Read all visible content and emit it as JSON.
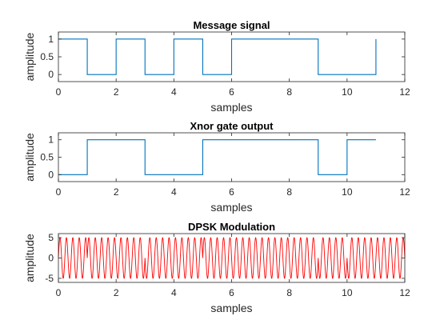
{
  "chart_data": [
    {
      "type": "line",
      "title": "Message signal",
      "xlabel": "samples",
      "ylabel": "amplitude",
      "xlim": [
        0,
        12
      ],
      "ylim": [
        -0.2,
        1.2
      ],
      "xticks": [
        0,
        2,
        4,
        6,
        8,
        10,
        12
      ],
      "yticks": [
        0,
        0.5,
        1
      ],
      "xtick_labels": [
        "0",
        "2",
        "4",
        "6",
        "8",
        "10",
        "12"
      ],
      "ytick_labels": [
        "0",
        "0.5",
        "1"
      ],
      "grid": false,
      "color": "#0072BD",
      "series": [
        {
          "step": "post",
          "x": [
            0,
            1,
            2,
            3,
            4,
            5,
            6,
            7,
            8,
            9,
            10,
            11
          ],
          "y": [
            1,
            0,
            1,
            0,
            1,
            0,
            1,
            1,
            1,
            0,
            0,
            1
          ]
        }
      ]
    },
    {
      "type": "line",
      "title": "Xnor gate output",
      "xlabel": "samples",
      "ylabel": "amplitude",
      "xlim": [
        0,
        12
      ],
      "ylim": [
        -0.2,
        1.2
      ],
      "xticks": [
        0,
        2,
        4,
        6,
        8,
        10,
        12
      ],
      "yticks": [
        0,
        0.5,
        1
      ],
      "xtick_labels": [
        "0",
        "2",
        "4",
        "6",
        "8",
        "10",
        "12"
      ],
      "ytick_labels": [
        "0",
        "0.5",
        "1"
      ],
      "grid": false,
      "color": "#0072BD",
      "series": [
        {
          "step": "post",
          "x": [
            0,
            1,
            2,
            3,
            4,
            5,
            6,
            7,
            8,
            9,
            10,
            11
          ],
          "y": [
            0,
            1,
            1,
            0,
            0,
            1,
            1,
            1,
            1,
            0,
            1,
            1
          ]
        }
      ]
    },
    {
      "type": "line",
      "title": "DPSK Modulation",
      "xlabel": "samples",
      "ylabel": "amplitude",
      "xlim": [
        0,
        12
      ],
      "ylim": [
        -6,
        6
      ],
      "xticks": [
        0,
        2,
        4,
        6,
        8,
        10,
        12
      ],
      "yticks": [
        -5,
        0,
        5
      ],
      "xtick_labels": [
        "0",
        "2",
        "4",
        "6",
        "8",
        "10",
        "12"
      ],
      "ytick_labels": [
        "-5",
        "0",
        "5"
      ],
      "grid": false,
      "color": "#FF0000",
      "carrier": {
        "amplitude": 5,
        "cycles_per_sample": 4.5,
        "phase_bits": [
          0,
          1,
          1,
          0,
          0,
          1,
          1,
          1,
          1,
          0,
          1,
          1
        ]
      }
    }
  ]
}
